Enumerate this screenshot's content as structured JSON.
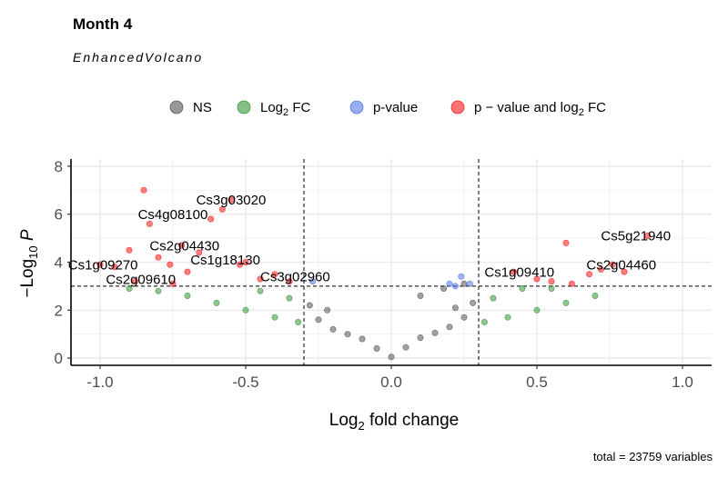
{
  "chart_data": {
    "type": "scatter",
    "title": "Month 4",
    "subtitle": "EnhancedVolcano",
    "xlabel": "Log2 fold change",
    "ylabel": "-Log10 P",
    "xlim": [
      -1.1,
      1.1
    ],
    "ylim": [
      -0.3,
      8.3
    ],
    "xticks": [
      -1.0,
      -0.5,
      0.0,
      0.5,
      1.0
    ],
    "xtick_labels": [
      "-1.0",
      "-0.5",
      "0.0",
      "0.5",
      "1.0"
    ],
    "yticks": [
      0,
      2,
      4,
      6,
      8
    ],
    "ytick_labels": [
      "0",
      "2",
      "4",
      "6",
      "8"
    ],
    "grid": true,
    "legend_position": "top",
    "fc_cutoff": 0.3,
    "p_cutoff": 3.0,
    "legend": [
      {
        "key": "ns",
        "base": "NS",
        "sub": "",
        "tail": "",
        "color": "#444444"
      },
      {
        "key": "fc",
        "base": "Log",
        "sub": "2",
        "tail": " FC",
        "color": "#228B22"
      },
      {
        "key": "p",
        "base": "p-value",
        "sub": "",
        "tail": "",
        "color": "#4169E1"
      },
      {
        "key": "pfc",
        "base": "p − value and log",
        "sub": "2",
        "tail": " FC",
        "color": "#FF0000"
      }
    ],
    "series": [
      {
        "name": "NS",
        "color": "#444444",
        "points": [
          [
            0.0,
            0.05
          ],
          [
            -0.05,
            0.4
          ],
          [
            0.05,
            0.45
          ],
          [
            -0.1,
            0.8
          ],
          [
            0.1,
            0.85
          ],
          [
            -0.2,
            1.2
          ],
          [
            0.2,
            1.3
          ],
          [
            -0.25,
            1.6
          ],
          [
            0.25,
            1.7
          ],
          [
            -0.28,
            2.2
          ],
          [
            0.28,
            2.3
          ],
          [
            -0.15,
            1.0
          ],
          [
            0.15,
            1.05
          ],
          [
            -0.22,
            2.0
          ],
          [
            0.22,
            2.1
          ],
          [
            0.1,
            2.6
          ],
          [
            0.18,
            2.9
          ],
          [
            0.25,
            3.1
          ]
        ]
      },
      {
        "name": "Log2 FC",
        "color": "#228B22",
        "points": [
          [
            -0.32,
            1.5
          ],
          [
            -0.4,
            1.7
          ],
          [
            -0.5,
            2.0
          ],
          [
            -0.6,
            2.3
          ],
          [
            -0.7,
            2.6
          ],
          [
            -0.8,
            2.8
          ],
          [
            -0.9,
            2.9
          ],
          [
            -0.45,
            2.8
          ],
          [
            -0.35,
            2.5
          ],
          [
            0.32,
            1.5
          ],
          [
            0.4,
            1.7
          ],
          [
            0.5,
            2.0
          ],
          [
            0.6,
            2.3
          ],
          [
            0.7,
            2.6
          ],
          [
            0.45,
            2.9
          ],
          [
            0.35,
            2.5
          ],
          [
            0.55,
            2.9
          ]
        ]
      },
      {
        "name": "p-value",
        "color": "#4169E1",
        "points": [
          [
            -0.27,
            3.2
          ],
          [
            0.2,
            3.1
          ],
          [
            0.24,
            3.4
          ],
          [
            0.27,
            3.1
          ],
          [
            0.22,
            3.0
          ]
        ]
      },
      {
        "name": "p - value and log2 FC",
        "color": "#FF0000",
        "points": [
          [
            -0.95,
            3.8
          ],
          [
            -0.9,
            4.5
          ],
          [
            -0.85,
            7.0
          ],
          [
            -0.83,
            5.6
          ],
          [
            -0.8,
            4.2
          ],
          [
            -0.76,
            3.9
          ],
          [
            -0.72,
            4.7
          ],
          [
            -0.7,
            3.6
          ],
          [
            -0.66,
            4.4
          ],
          [
            -0.62,
            5.8
          ],
          [
            -0.58,
            6.2
          ],
          [
            -0.55,
            6.6
          ],
          [
            -0.52,
            3.9
          ],
          [
            -0.5,
            4.0
          ],
          [
            -0.45,
            3.3
          ],
          [
            -0.4,
            3.5
          ],
          [
            -0.35,
            3.2
          ],
          [
            -1.0,
            3.9
          ],
          [
            -0.88,
            3.2
          ],
          [
            -0.75,
            3.1
          ],
          [
            0.42,
            3.6
          ],
          [
            0.5,
            3.3
          ],
          [
            0.6,
            4.8
          ],
          [
            0.68,
            3.5
          ],
          [
            0.72,
            3.7
          ],
          [
            0.76,
            3.9
          ],
          [
            0.8,
            3.6
          ],
          [
            0.88,
            5.1
          ],
          [
            0.62,
            3.1
          ],
          [
            0.55,
            3.2
          ]
        ]
      }
    ],
    "labels": [
      {
        "text": "Cs3g03020",
        "x": -0.67,
        "y": 6.4
      },
      {
        "text": "Cs4g08100",
        "x": -0.87,
        "y": 5.8
      },
      {
        "text": "Cs2g04430",
        "x": -0.83,
        "y": 4.5
      },
      {
        "text": "Cs1g18130",
        "x": -0.69,
        "y": 3.9
      },
      {
        "text": "Cs1g09270",
        "x": -1.11,
        "y": 3.7
      },
      {
        "text": "Cs2g09610",
        "x": -0.98,
        "y": 3.1
      },
      {
        "text": "Cs3g02960",
        "x": -0.45,
        "y": 3.2
      },
      {
        "text": "Cs1g09410",
        "x": 0.32,
        "y": 3.4
      },
      {
        "text": "Cs5g21940",
        "x": 0.72,
        "y": 4.9
      },
      {
        "text": "Cs2g04460",
        "x": 0.67,
        "y": 3.7
      }
    ],
    "caption": "total = 23759 variables"
  }
}
